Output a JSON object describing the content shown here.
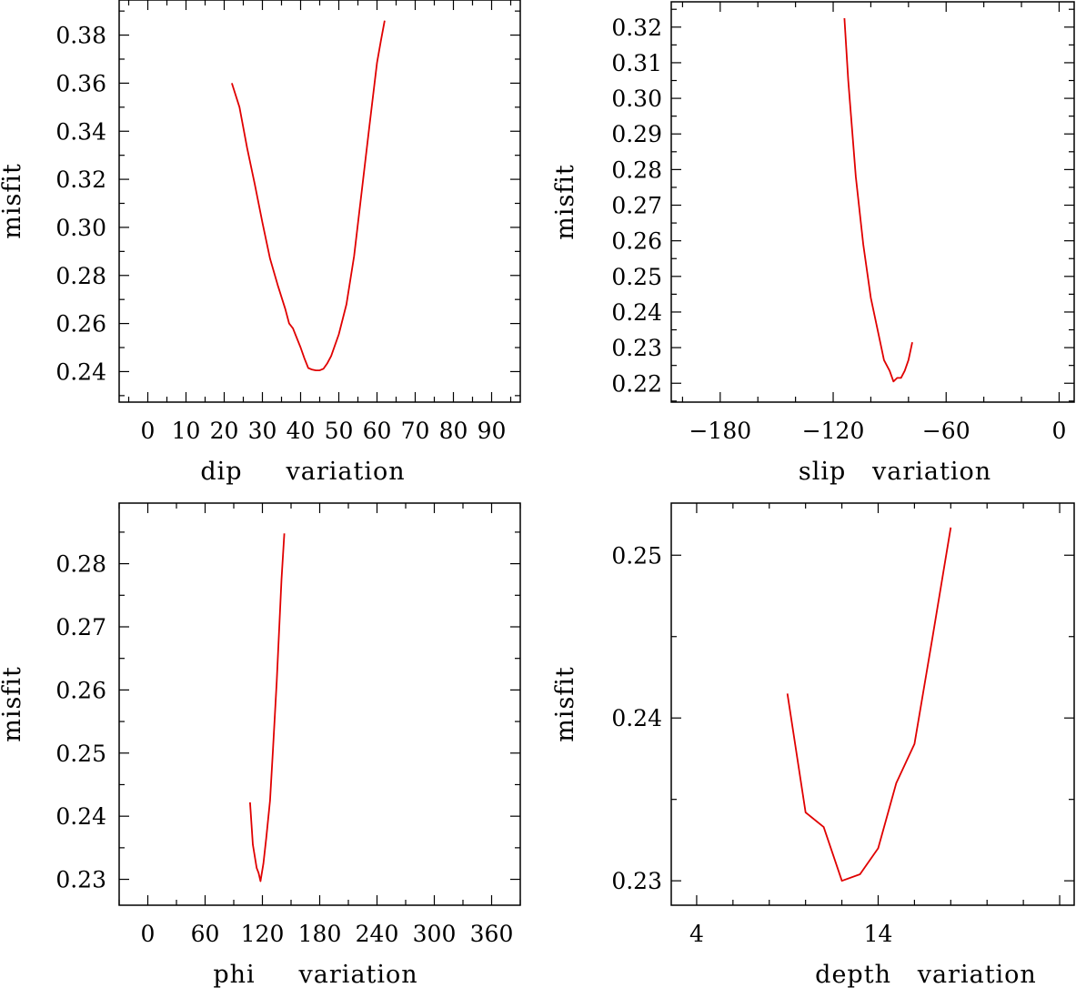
{
  "colors": {
    "line": "#e00000",
    "axis": "#000000",
    "background": "#ffffff"
  },
  "chart_data": [
    {
      "type": "line",
      "position": "top-left",
      "title": "",
      "xlabel": "dip     variation",
      "ylabel": "misfit",
      "xlim": [
        -7.5,
        97.5
      ],
      "ylim": [
        0.2273,
        0.3946
      ],
      "xticks": [
        0,
        10,
        20,
        30,
        40,
        50,
        60,
        70,
        80,
        90
      ],
      "xtick_labels": [
        "0",
        "10",
        "20",
        "30",
        "40",
        "50",
        "60",
        "70",
        "80",
        "90"
      ],
      "yticks": [
        0.24,
        0.26,
        0.28,
        0.3,
        0.32,
        0.34,
        0.36,
        0.38
      ],
      "ytick_labels": [
        "0.24",
        "0.26",
        "0.28",
        "0.30",
        "0.32",
        "0.34",
        "0.36",
        "0.38"
      ],
      "series": [
        {
          "name": "dip",
          "x": [
            22,
            24,
            26,
            28,
            30,
            32,
            34,
            36,
            37,
            38,
            39,
            40,
            41,
            42,
            43,
            44,
            45,
            46,
            47,
            48,
            50,
            52,
            54,
            56,
            58,
            60,
            61,
            62
          ],
          "y": [
            0.36,
            0.35,
            0.333,
            0.318,
            0.302,
            0.287,
            0.276,
            0.266,
            0.26,
            0.258,
            0.254,
            0.25,
            0.2455,
            0.2415,
            0.2408,
            0.2405,
            0.2405,
            0.2412,
            0.2435,
            0.2465,
            0.2555,
            0.268,
            0.288,
            0.315,
            0.342,
            0.3685,
            0.3775,
            0.386
          ]
        }
      ]
    },
    {
      "type": "line",
      "position": "top-right",
      "title": "",
      "xlabel": "slip   variation",
      "ylabel": "misfit",
      "xlim": [
        -206,
        8
      ],
      "ylim": [
        0.2147,
        0.3271
      ],
      "xticks": [
        -180,
        -120,
        -60,
        0
      ],
      "xtick_labels": [
        "−180",
        "−120",
        "−60",
        "0"
      ],
      "yticks": [
        0.22,
        0.23,
        0.24,
        0.25,
        0.26,
        0.27,
        0.28,
        0.29,
        0.3,
        0.31,
        0.32
      ],
      "ytick_labels": [
        "0.22",
        "0.23",
        "0.24",
        "0.25",
        "0.26",
        "0.27",
        "0.28",
        "0.29",
        "0.30",
        "0.31",
        "0.32"
      ],
      "series": [
        {
          "name": "slip",
          "x": [
            -114,
            -112,
            -108,
            -104,
            -100,
            -96,
            -93,
            -90,
            -88,
            -86,
            -84,
            -82,
            -80,
            -78
          ],
          "y": [
            0.3225,
            0.305,
            0.278,
            0.259,
            0.244,
            0.234,
            0.2265,
            0.2235,
            0.2205,
            0.2215,
            0.2215,
            0.2235,
            0.2265,
            0.2315
          ]
        }
      ]
    },
    {
      "type": "line",
      "position": "bottom-left",
      "title": "",
      "xlabel": "phi     variation",
      "ylabel": "misfit",
      "xlim": [
        -30,
        390
      ],
      "ylim": [
        0.2259,
        0.2896
      ],
      "xticks": [
        0,
        60,
        120,
        180,
        240,
        300,
        360
      ],
      "xtick_labels": [
        "0",
        "60",
        "120",
        "180",
        "240",
        "300",
        "360"
      ],
      "yticks": [
        0.23,
        0.24,
        0.25,
        0.26,
        0.27,
        0.28
      ],
      "ytick_labels": [
        "0.23",
        "0.24",
        "0.25",
        "0.26",
        "0.27",
        "0.28"
      ],
      "series": [
        {
          "name": "phi",
          "x": [
            107,
            110,
            114,
            116,
            118,
            121,
            124,
            128,
            131,
            135,
            140,
            143
          ],
          "y": [
            0.2422,
            0.2355,
            0.2318,
            0.231,
            0.2297,
            0.2325,
            0.2365,
            0.2425,
            0.2505,
            0.2615,
            0.2775,
            0.2848
          ]
        }
      ]
    },
    {
      "type": "line",
      "position": "bottom-right",
      "title": "",
      "xlabel": "depth   variation",
      "ylabel": "misfit",
      "xlim": [
        2.6,
        24.8
      ],
      "ylim": [
        0.2285,
        0.2532
      ],
      "xticks": [
        4,
        14
      ],
      "xtick_labels": [
        "4",
        "14"
      ],
      "yticks": [
        0.23,
        0.24,
        0.25
      ],
      "ytick_labels": [
        "0.23",
        "0.24",
        "0.25"
      ],
      "series": [
        {
          "name": "depth",
          "x": [
            9,
            10,
            11,
            12,
            13,
            14,
            15,
            16,
            17,
            18
          ],
          "y": [
            0.2415,
            0.2342,
            0.2333,
            0.23,
            0.2304,
            0.232,
            0.236,
            0.2384,
            0.245,
            0.2517
          ]
        }
      ]
    }
  ]
}
